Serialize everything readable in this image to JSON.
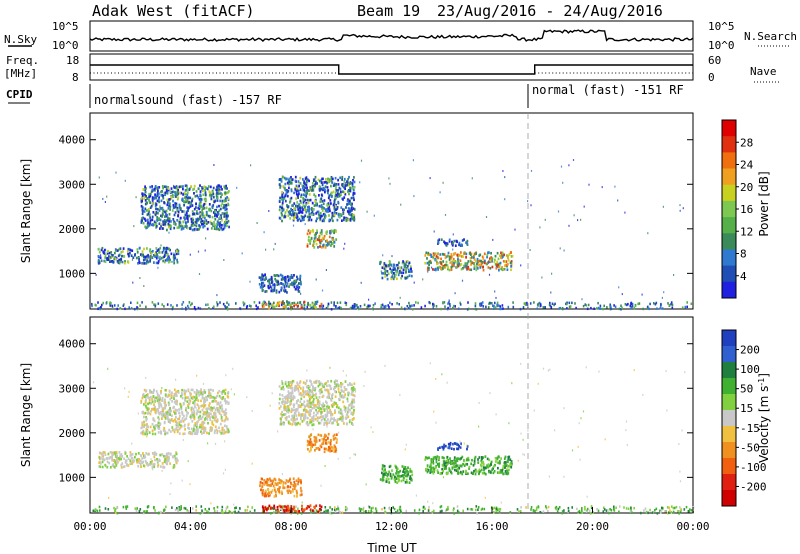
{
  "header": {
    "station": "Adak West (fitACF)",
    "beam_label": "Beam 19",
    "date_range": "23/Aug/2016 - 24/Aug/2016"
  },
  "top_panels": {
    "nsky_label": "N.Sky",
    "nsearch_label": "N.Search",
    "noise_ticks": [
      "10^5",
      "10^0"
    ],
    "freq_label_line1": "Freq.",
    "freq_label_line2": "[MHz]",
    "freq_ticks": [
      "18",
      "8"
    ],
    "nave_label": "Nave",
    "nave_ticks": [
      "60",
      "0"
    ],
    "cpid_label": "CPID",
    "cpid_segments": [
      {
        "label": "normalsound (fast) -157 RF",
        "start_hour": 0
      },
      {
        "label": "normal (fast) -151 RF",
        "start_hour": 17.6
      }
    ]
  },
  "chart_data": [
    {
      "type": "heatmap",
      "panel": "power",
      "xlabel": "",
      "ylabel": "Slant Range [km]",
      "xlim": [
        0,
        24
      ],
      "ylim": [
        200,
        4600
      ],
      "y_ticks": [
        "1000",
        "2000",
        "3000",
        "4000"
      ],
      "colorbar_label": "Power [dB]",
      "colorbar_ticks": [
        "4",
        "8",
        "12",
        "16",
        "20",
        "24",
        "28"
      ],
      "colorbar_colors": [
        "#2020e0",
        "#1f4fb5",
        "#2f7ad0",
        "#3a8a5a",
        "#55b04a",
        "#7dc850",
        "#c8d020",
        "#f0a020",
        "#f07010",
        "#e03010",
        "#e00000"
      ],
      "regions": [
        {
          "t0": 0.3,
          "t1": 3.5,
          "r0": 1250,
          "r1": 1600,
          "level": "mid"
        },
        {
          "t0": 2.0,
          "t1": 5.5,
          "r0": 2000,
          "r1": 3000,
          "level": "mid"
        },
        {
          "t0": 6.7,
          "t1": 8.4,
          "r0": 600,
          "r1": 1000,
          "level": "low"
        },
        {
          "t0": 7.5,
          "t1": 10.5,
          "r0": 2200,
          "r1": 3200,
          "level": "mid"
        },
        {
          "t0": 8.6,
          "t1": 9.8,
          "r0": 1600,
          "r1": 2000,
          "level": "high"
        },
        {
          "t0": 11.5,
          "t1": 12.8,
          "r0": 900,
          "r1": 1300,
          "level": "mid"
        },
        {
          "t0": 13.3,
          "t1": 16.8,
          "r0": 1100,
          "r1": 1500,
          "level": "high"
        },
        {
          "t0": 13.8,
          "t1": 15.0,
          "r0": 1650,
          "r1": 1800,
          "level": "low"
        },
        {
          "t0": 6.8,
          "t1": 9.2,
          "r0": 250,
          "r1": 400,
          "level": "high"
        }
      ]
    },
    {
      "type": "heatmap",
      "panel": "velocity",
      "xlabel": "Time UT",
      "ylabel": "Slant Range [km]",
      "xlim": [
        0,
        24
      ],
      "ylim": [
        200,
        4600
      ],
      "x_ticks": [
        "00:00",
        "04:00",
        "08:00",
        "12:00",
        "16:00",
        "20:00",
        "00:00"
      ],
      "y_ticks": [
        "1000",
        "2000",
        "3000",
        "4000"
      ],
      "colorbar_label": "Velocity [m s^-1]",
      "colorbar_ticks": [
        "200",
        "100",
        "50",
        "15",
        "-15",
        "-50",
        "-100",
        "-200"
      ],
      "colorbar_colors": [
        "#2040c0",
        "#3060d0",
        "#1f7f3f",
        "#40b030",
        "#80d040",
        "#c8c8c8",
        "#f0c040",
        "#f09020",
        "#f06010",
        "#e02010",
        "#d00000"
      ],
      "regions": [
        {
          "t0": 0.3,
          "t1": 3.5,
          "r0": 1250,
          "r1": 1600,
          "v": "grey"
        },
        {
          "t0": 2.0,
          "t1": 5.5,
          "r0": 2000,
          "r1": 3000,
          "v": "grey"
        },
        {
          "t0": 6.7,
          "t1": 8.4,
          "r0": 600,
          "r1": 1000,
          "v": "orange"
        },
        {
          "t0": 7.5,
          "t1": 10.5,
          "r0": 2200,
          "r1": 3200,
          "v": "grey"
        },
        {
          "t0": 8.6,
          "t1": 9.8,
          "r0": 1600,
          "r1": 2000,
          "v": "orange"
        },
        {
          "t0": 11.5,
          "t1": 12.8,
          "r0": 900,
          "r1": 1300,
          "v": "green"
        },
        {
          "t0": 13.3,
          "t1": 16.8,
          "r0": 1100,
          "r1": 1500,
          "v": "green"
        },
        {
          "t0": 13.8,
          "t1": 15.0,
          "r0": 1650,
          "r1": 1800,
          "v": "blue"
        },
        {
          "t0": 6.8,
          "t1": 9.2,
          "r0": 250,
          "r1": 400,
          "v": "red"
        }
      ]
    }
  ]
}
